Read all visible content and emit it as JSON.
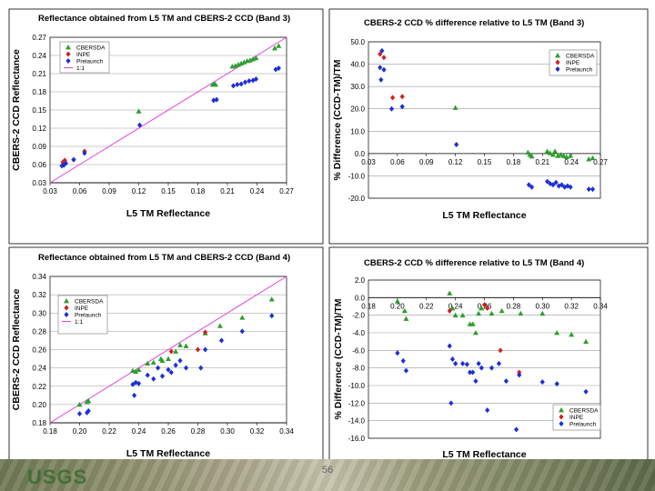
{
  "slide": {
    "footer_logo": "USGS",
    "page_number": "56"
  },
  "colors": {
    "CBERSDA": "#2e9e2e",
    "INPE": "#d22020",
    "Prelaunch": "#1c2fd6",
    "one_to_one": "#e040e0"
  },
  "chart_data": [
    {
      "id": "reflectance-band3",
      "type": "scatter",
      "title": "Reflectance obtained from L5 TM and CBERS-2 CCD (Band 3)",
      "xlabel": "L5 TM Reflectance",
      "ylabel": "CBERS-2 CCD Reflectance",
      "xlim": [
        0.03,
        0.27
      ],
      "ylim": [
        0.03,
        0.27
      ],
      "xticks": [
        "0.03",
        "0.06",
        "0.09",
        "0.12",
        "0.15",
        "0.18",
        "0.21",
        "0.24",
        "0.27"
      ],
      "yticks": [
        "0.03",
        "0.06",
        "0.09",
        "0.12",
        "0.15",
        "0.18",
        "0.21",
        "0.24",
        "0.27"
      ],
      "grid": true,
      "legend_position": "top-left",
      "legend": [
        "CBERSDA",
        "INPE",
        "Prelaunch",
        "1:1"
      ],
      "one_to_one": true,
      "series": [
        {
          "name": "CBERSDA",
          "marker": "triangle",
          "points": [
            [
              0.12,
              0.148
            ],
            [
              0.195,
              0.192
            ],
            [
              0.197,
              0.193
            ],
            [
              0.198,
              0.192
            ],
            [
              0.215,
              0.222
            ],
            [
              0.218,
              0.223
            ],
            [
              0.221,
              0.225
            ],
            [
              0.224,
              0.227
            ],
            [
              0.227,
              0.229
            ],
            [
              0.23,
              0.231
            ],
            [
              0.233,
              0.232
            ],
            [
              0.236,
              0.234
            ],
            [
              0.239,
              0.236
            ],
            [
              0.258,
              0.252
            ],
            [
              0.262,
              0.256
            ]
          ]
        },
        {
          "name": "INPE",
          "marker": "diamond",
          "points": [
            [
              0.043,
              0.064
            ],
            [
              0.045,
              0.067
            ],
            [
              0.054,
              0.068
            ],
            [
              0.065,
              0.082
            ]
          ]
        },
        {
          "name": "Prelaunch",
          "marker": "diamond",
          "points": [
            [
              0.042,
              0.058
            ],
            [
              0.044,
              0.059
            ],
            [
              0.046,
              0.062
            ],
            [
              0.054,
              0.068
            ],
            [
              0.065,
              0.079
            ],
            [
              0.121,
              0.125
            ],
            [
              0.196,
              0.166
            ],
            [
              0.199,
              0.167
            ],
            [
              0.216,
              0.19
            ],
            [
              0.22,
              0.192
            ],
            [
              0.224,
              0.193
            ],
            [
              0.228,
              0.196
            ],
            [
              0.232,
              0.198
            ],
            [
              0.236,
              0.199
            ],
            [
              0.239,
              0.201
            ],
            [
              0.259,
              0.217
            ],
            [
              0.262,
              0.219
            ]
          ]
        }
      ]
    },
    {
      "id": "difference-band3",
      "type": "scatter",
      "title": "CBERS-2 CCD % difference relative to L5 TM (Band 3)",
      "xlabel": "L5 TM Reflectance",
      "ylabel": "% Difference (CCD-TM)/TM",
      "xlim": [
        0.03,
        0.27
      ],
      "ylim": [
        -20.0,
        50.0
      ],
      "xticks": [
        "0.03",
        "0.06",
        "0.09",
        "0.12",
        "0.15",
        "0.18",
        "0.21",
        "0.24",
        "0.27"
      ],
      "yticks": [
        "-20.0",
        "-10.0",
        "0.0",
        "10.0",
        "20.0",
        "30.0",
        "40.0",
        "50.0"
      ],
      "x_axis_at_zero": true,
      "grid": true,
      "legend_position": "top-right",
      "legend": [
        "CBERSDA",
        "INPE",
        "Prelaunch"
      ],
      "series": [
        {
          "name": "CBERSDA",
          "marker": "triangle",
          "points": [
            [
              0.12,
              20.5
            ],
            [
              0.195,
              0.5
            ],
            [
              0.197,
              -0.5
            ],
            [
              0.199,
              -1.2
            ],
            [
              0.215,
              1.0
            ],
            [
              0.218,
              0.2
            ],
            [
              0.221,
              -0.5
            ],
            [
              0.223,
              1.0
            ],
            [
              0.226,
              -1.0
            ],
            [
              0.229,
              -0.5
            ],
            [
              0.232,
              -1.0
            ],
            [
              0.235,
              -1.5
            ],
            [
              0.239,
              -1.0
            ],
            [
              0.258,
              -2.5
            ],
            [
              0.262,
              -2.0
            ]
          ]
        },
        {
          "name": "INPE",
          "marker": "diamond",
          "points": [
            [
              0.042,
              44.5
            ],
            [
              0.046,
              43.0
            ],
            [
              0.055,
              25.0
            ],
            [
              0.065,
              25.5
            ]
          ]
        },
        {
          "name": "Prelaunch",
          "marker": "diamond",
          "points": [
            [
              0.042,
              38.5
            ],
            [
              0.043,
              33.0
            ],
            [
              0.044,
              46.0
            ],
            [
              0.046,
              37.5
            ],
            [
              0.054,
              20.0
            ],
            [
              0.065,
              21.0
            ],
            [
              0.121,
              4.0
            ],
            [
              0.196,
              -14.0
            ],
            [
              0.199,
              -15.0
            ],
            [
              0.215,
              -12.5
            ],
            [
              0.218,
              -13.5
            ],
            [
              0.221,
              -14.0
            ],
            [
              0.224,
              -13.0
            ],
            [
              0.227,
              -14.5
            ],
            [
              0.23,
              -14.0
            ],
            [
              0.233,
              -15.0
            ],
            [
              0.236,
              -14.5
            ],
            [
              0.239,
              -15.0
            ],
            [
              0.258,
              -16.0
            ],
            [
              0.262,
              -16.0
            ]
          ]
        }
      ]
    },
    {
      "id": "reflectance-band4",
      "type": "scatter",
      "title": "Reflectance obtained from L5 TM and CBERS-2 CCD (Band 4)",
      "xlabel": "L5 TM Reflectance",
      "ylabel": "CBERS-2 CCD Reflectance",
      "xlim": [
        0.18,
        0.34
      ],
      "ylim": [
        0.18,
        0.34
      ],
      "xticks": [
        "0.18",
        "0.20",
        "0.22",
        "0.24",
        "0.26",
        "0.28",
        "0.30",
        "0.32",
        "0.34"
      ],
      "yticks": [
        "0.18",
        "0.20",
        "0.22",
        "0.24",
        "0.26",
        "0.28",
        "0.30",
        "0.32",
        "0.34"
      ],
      "grid": true,
      "legend_position": "middle-left",
      "legend": [
        "CBERSDA",
        "INPE",
        "Prelaunch",
        "1:1"
      ],
      "one_to_one": true,
      "series": [
        {
          "name": "CBERSDA",
          "marker": "triangle",
          "points": [
            [
              0.2,
              0.2
            ],
            [
              0.205,
              0.203
            ],
            [
              0.206,
              0.204
            ],
            [
              0.236,
              0.237
            ],
            [
              0.238,
              0.236
            ],
            [
              0.24,
              0.238
            ],
            [
              0.246,
              0.245
            ],
            [
              0.25,
              0.246
            ],
            [
              0.255,
              0.25
            ],
            [
              0.256,
              0.248
            ],
            [
              0.26,
              0.25
            ],
            [
              0.265,
              0.258
            ],
            [
              0.268,
              0.265
            ],
            [
              0.272,
              0.264
            ],
            [
              0.285,
              0.278
            ],
            [
              0.295,
              0.286
            ],
            [
              0.31,
              0.295
            ],
            [
              0.33,
              0.315
            ]
          ]
        },
        {
          "name": "INPE",
          "marker": "diamond",
          "points": [
            [
              0.262,
              0.258
            ],
            [
              0.28,
              0.26
            ],
            [
              0.285,
              0.279
            ]
          ]
        },
        {
          "name": "Prelaunch",
          "marker": "diamond",
          "points": [
            [
              0.2,
              0.19
            ],
            [
              0.205,
              0.191
            ],
            [
              0.206,
              0.193
            ],
            [
              0.236,
              0.222
            ],
            [
              0.237,
              0.21
            ],
            [
              0.238,
              0.224
            ],
            [
              0.24,
              0.223
            ],
            [
              0.246,
              0.232
            ],
            [
              0.25,
              0.228
            ],
            [
              0.253,
              0.24
            ],
            [
              0.256,
              0.231
            ],
            [
              0.26,
              0.238
            ],
            [
              0.262,
              0.235
            ],
            [
              0.265,
              0.243
            ],
            [
              0.268,
              0.248
            ],
            [
              0.272,
              0.24
            ],
            [
              0.282,
              0.24
            ],
            [
              0.285,
              0.26
            ],
            [
              0.296,
              0.27
            ],
            [
              0.31,
              0.28
            ],
            [
              0.33,
              0.297
            ]
          ]
        }
      ]
    },
    {
      "id": "difference-band4",
      "type": "scatter",
      "title": "CBERS-2 CCD % difference relative to L5 TM (Band 4)",
      "xlabel": "L5 TM Reflectance",
      "ylabel": "% Difference (CCD-TM)/TM",
      "xlim": [
        0.18,
        0.34
      ],
      "ylim": [
        -16.0,
        2.0
      ],
      "xticks": [
        "0.18",
        "0.20",
        "0.22",
        "0.24",
        "0.26",
        "0.28",
        "0.30",
        "0.32",
        "0.34"
      ],
      "yticks": [
        "-16.0",
        "-14.0",
        "-12.0",
        "-10.0",
        "-8.0",
        "-6.0",
        "-4.0",
        "-2.0",
        "0.0",
        "2.0"
      ],
      "x_axis_at_zero": true,
      "grid": true,
      "legend_position": "bottom-right",
      "legend": [
        "CBERSDA",
        "INPE",
        "Prelaunch"
      ],
      "series": [
        {
          "name": "CBERSDA",
          "marker": "triangle",
          "points": [
            [
              0.2,
              -0.4
            ],
            [
              0.205,
              -1.5
            ],
            [
              0.206,
              -2.4
            ],
            [
              0.236,
              0.5
            ],
            [
              0.238,
              -1.2
            ],
            [
              0.24,
              -2.0
            ],
            [
              0.245,
              -2.0
            ],
            [
              0.25,
              -3.0
            ],
            [
              0.252,
              -3.0
            ],
            [
              0.254,
              -4.0
            ],
            [
              0.256,
              -1.8
            ],
            [
              0.258,
              -1.2
            ],
            [
              0.265,
              -1.8
            ],
            [
              0.272,
              -1.5
            ],
            [
              0.285,
              -1.8
            ],
            [
              0.3,
              -1.8
            ],
            [
              0.31,
              -4.0
            ],
            [
              0.32,
              -4.2
            ],
            [
              0.33,
              -5.0
            ]
          ]
        },
        {
          "name": "INPE",
          "marker": "diamond",
          "points": [
            [
              0.236,
              -1.5
            ],
            [
              0.26,
              -0.8
            ],
            [
              0.262,
              -1.2
            ],
            [
              0.271,
              -6.0
            ],
            [
              0.284,
              -8.5
            ]
          ]
        },
        {
          "name": "Prelaunch",
          "marker": "diamond",
          "points": [
            [
              0.2,
              -6.3
            ],
            [
              0.204,
              -7.2
            ],
            [
              0.206,
              -8.3
            ],
            [
              0.236,
              -5.5
            ],
            [
              0.237,
              -12.0
            ],
            [
              0.238,
              -7.0
            ],
            [
              0.24,
              -7.5
            ],
            [
              0.245,
              -7.5
            ],
            [
              0.248,
              -7.6
            ],
            [
              0.25,
              -8.5
            ],
            [
              0.252,
              -8.5
            ],
            [
              0.254,
              -9.5
            ],
            [
              0.256,
              -7.5
            ],
            [
              0.258,
              -8.0
            ],
            [
              0.262,
              -12.8
            ],
            [
              0.265,
              -8.0
            ],
            [
              0.27,
              -7.5
            ],
            [
              0.275,
              -9.5
            ],
            [
              0.282,
              -15.0
            ],
            [
              0.284,
              -8.8
            ],
            [
              0.3,
              -9.6
            ],
            [
              0.31,
              -9.8
            ],
            [
              0.33,
              -10.7
            ]
          ]
        }
      ]
    }
  ]
}
